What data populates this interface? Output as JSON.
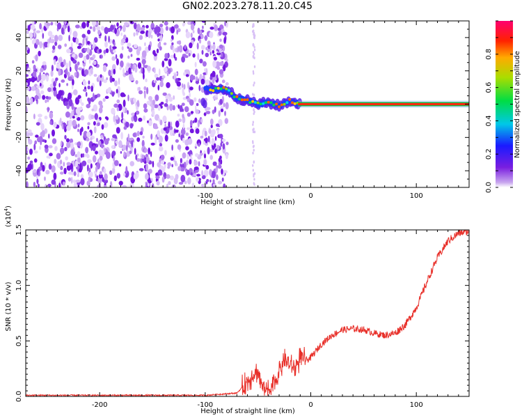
{
  "title": "GN02.2023.278.11.20.C45",
  "chart_data": [
    {
      "type": "heatmap",
      "xlabel": "Height of straight line (km)",
      "ylabel": "Frequency (Hz)",
      "xlim": [
        -270,
        150
      ],
      "ylim": [
        -50,
        50
      ],
      "x_ticks": [
        -200,
        -100,
        0,
        100
      ],
      "y_ticks": [
        -40,
        -20,
        0,
        20,
        40
      ],
      "colorbar": {
        "label": "Normalized spectral amplitude",
        "range": [
          0.0,
          1.0
        ],
        "ticks": [
          0.0,
          0.2,
          0.4,
          0.6,
          0.8
        ],
        "colormap": "rainbow (purple-blue-cyan-green-yellow-red-magenta)"
      },
      "description_points": {
        "noise_region_x": [
          -270,
          -85
        ],
        "signal_track": {
          "x": [
            -100,
            -90,
            -80,
            -70,
            -60,
            -50,
            -40,
            -30,
            -20,
            -10,
            0,
            50,
            100,
            150
          ],
          "y": [
            9,
            9,
            9,
            4,
            2,
            0,
            1,
            -1,
            2,
            0,
            0,
            0,
            0,
            0
          ]
        }
      }
    },
    {
      "type": "line",
      "xlabel": "Height of straight line (km)",
      "ylabel": "SNR (10 * v/v)",
      "y_multiplier": "(x10",
      "y_multiplier_exp": "4",
      "xlim": [
        -270,
        150
      ],
      "ylim": [
        0.0,
        1.5
      ],
      "x_ticks": [
        -200,
        -100,
        0,
        100
      ],
      "y_ticks": [
        0.0,
        0.5,
        1.0,
        1.5
      ],
      "y_tick_labels": [
        "0.0",
        "0.5",
        "1.0",
        "1.5"
      ],
      "series": [
        {
          "color": "#e8302a",
          "x": [
            -270,
            -100,
            -70,
            -60,
            -55,
            -50,
            -45,
            -40,
            -35,
            -30,
            -25,
            -20,
            -15,
            -10,
            -5,
            0,
            10,
            20,
            30,
            40,
            50,
            60,
            70,
            80,
            90,
            100,
            110,
            120,
            130,
            140,
            150
          ],
          "y": [
            0.01,
            0.01,
            0.03,
            0.13,
            0.2,
            0.22,
            0.06,
            0.05,
            0.12,
            0.22,
            0.34,
            0.28,
            0.25,
            0.35,
            0.32,
            0.35,
            0.47,
            0.55,
            0.6,
            0.61,
            0.6,
            0.57,
            0.55,
            0.57,
            0.65,
            0.8,
            1.03,
            1.25,
            1.4,
            1.47,
            1.49
          ]
        }
      ]
    }
  ]
}
